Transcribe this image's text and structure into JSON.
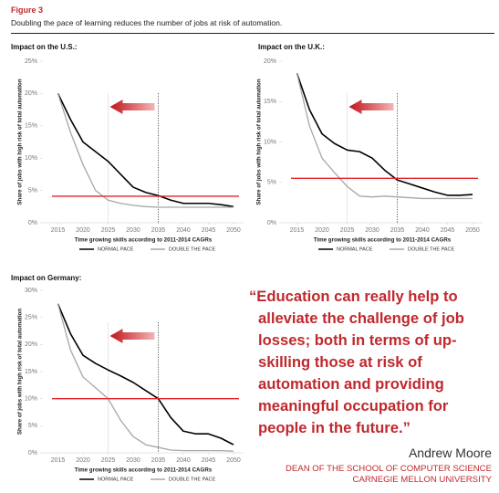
{
  "figure_label": "Figure 3",
  "subtitle": "Doubling the pace of learning reduces the number of jobs at risk of automation.",
  "quote": {
    "text": "“Education can really help to alleviate the challenge of job losses; both in terms of up-skilling those at risk of automation and providing meaningful occupation for people in the future.”",
    "author": "Andrew Moore",
    "role": "DEAN OF THE SCHOOL OF COMPUTER SCIENCE",
    "organization": "CARNEGIE MELLON UNIVERSITY"
  },
  "chart_data": [
    {
      "type": "line",
      "title": "Impact on the U.S.:",
      "x_label": "Time growing skills according to 2011-2014 CAGRs",
      "y_label": "Share of jobs with high risk of total automation",
      "x": [
        2015,
        2017.5,
        2020,
        2022.5,
        2025,
        2027.5,
        2030,
        2032.5,
        2035,
        2037.5,
        2040,
        2042.5,
        2045,
        2047.5,
        2050
      ],
      "series": [
        {
          "name": "NORMAL PACE",
          "color": "#000000",
          "values": [
            20,
            16,
            12.5,
            11,
            9.5,
            7.5,
            5.5,
            4.7,
            4.2,
            3.5,
            3,
            3,
            3,
            2.8,
            2.5
          ]
        },
        {
          "name": "DOUBLE THE PACE",
          "color": "#a6a6a6",
          "values": [
            20,
            14,
            9,
            5,
            3.5,
            3,
            2.7,
            2.5,
            2.4,
            2.4,
            2.4,
            2.4,
            2.4,
            2.4,
            2.4
          ]
        }
      ],
      "hline": {
        "value": 4.1,
        "color": "#e8232a"
      },
      "vlines": [
        {
          "value": 2025,
          "style": "solid"
        },
        {
          "value": 2035,
          "style": "dotted"
        }
      ],
      "xlim": [
        2012,
        2052
      ],
      "xticks": [
        2015,
        2020,
        2025,
        2030,
        2035,
        2040,
        2045,
        2050
      ],
      "ylim": [
        0,
        25
      ],
      "yticks": [
        {
          "value": 0,
          "label": "0%"
        },
        {
          "value": 5,
          "label": "5%"
        },
        {
          "value": 10,
          "label": "10%"
        },
        {
          "value": 15,
          "label": "15%"
        },
        {
          "value": 20,
          "label": "20%"
        },
        {
          "value": 25,
          "label": "25%"
        }
      ]
    },
    {
      "type": "line",
      "title": "Impact on the U.K.:",
      "x_label": "Time growing skills according to 2011-2014 CAGRs",
      "y_label": "Share of jobs with high risk of total automation",
      "x": [
        2015,
        2017.5,
        2020,
        2022.5,
        2025,
        2027.5,
        2030,
        2032.5,
        2035,
        2037.5,
        2040,
        2042.5,
        2045,
        2047.5,
        2050
      ],
      "series": [
        {
          "name": "NORMAL PACE",
          "color": "#000000",
          "values": [
            18.5,
            14,
            11,
            9.8,
            9,
            8.8,
            8,
            6.5,
            5.3,
            4.8,
            4.3,
            3.8,
            3.4,
            3.4,
            3.5
          ]
        },
        {
          "name": "DOUBLE THE PACE",
          "color": "#a6a6a6",
          "values": [
            18.5,
            12,
            8,
            6.2,
            4.5,
            3.3,
            3.2,
            3.3,
            3.2,
            3.1,
            3,
            3,
            3,
            3,
            3
          ]
        }
      ],
      "hline": {
        "value": 5.5,
        "color": "#e8232a"
      },
      "vlines": [
        {
          "value": 2025,
          "style": "solid"
        },
        {
          "value": 2035,
          "style": "dotted"
        }
      ],
      "xlim": [
        2012,
        2052
      ],
      "xticks": [
        2015,
        2020,
        2025,
        2030,
        2035,
        2040,
        2045,
        2050
      ],
      "ylim": [
        0,
        20
      ],
      "yticks": [
        {
          "value": 0,
          "label": "0%"
        },
        {
          "value": 5,
          "label": "5%"
        },
        {
          "value": 10,
          "label": "10%"
        },
        {
          "value": 15,
          "label": "15%"
        },
        {
          "value": 20,
          "label": "20%"
        }
      ]
    },
    {
      "type": "line",
      "title": "Impact on Germany:",
      "x_label": "Time growing skills according to 2011-2014 CAGRs",
      "y_label": "Share of jobs with high risk of total automation",
      "x": [
        2015,
        2017.5,
        2020,
        2022.5,
        2025,
        2027.5,
        2030,
        2032.5,
        2035,
        2037.5,
        2040,
        2042.5,
        2045,
        2047.5,
        2050
      ],
      "series": [
        {
          "name": "NORMAL PACE",
          "color": "#000000",
          "values": [
            27.5,
            22,
            18,
            16.5,
            15.3,
            14.2,
            13,
            11.5,
            10,
            6.5,
            4,
            3.5,
            3.5,
            2.7,
            1.5
          ]
        },
        {
          "name": "DOUBLE THE PACE",
          "color": "#a6a6a6",
          "values": [
            27.5,
            19,
            14,
            12,
            10,
            6,
            3,
            1.5,
            1,
            0.5,
            0.4,
            0.4,
            0.4,
            0.4,
            0.3
          ]
        }
      ],
      "hline": {
        "value": 10,
        "color": "#e8232a"
      },
      "vlines": [
        {
          "value": 2025,
          "style": "solid"
        },
        {
          "value": 2035,
          "style": "dotted"
        }
      ],
      "xlim": [
        2012,
        2052
      ],
      "xticks": [
        2015,
        2020,
        2025,
        2030,
        2035,
        2040,
        2045,
        2050
      ],
      "ylim": [
        0,
        30
      ],
      "yticks": [
        {
          "value": 0,
          "label": "0%"
        },
        {
          "value": 5,
          "label": "5%"
        },
        {
          "value": 10,
          "label": "10%"
        },
        {
          "value": 15,
          "label": "15%"
        },
        {
          "value": 20,
          "label": "20%"
        },
        {
          "value": 25,
          "label": "25%"
        },
        {
          "value": 30,
          "label": "30%"
        }
      ]
    }
  ]
}
